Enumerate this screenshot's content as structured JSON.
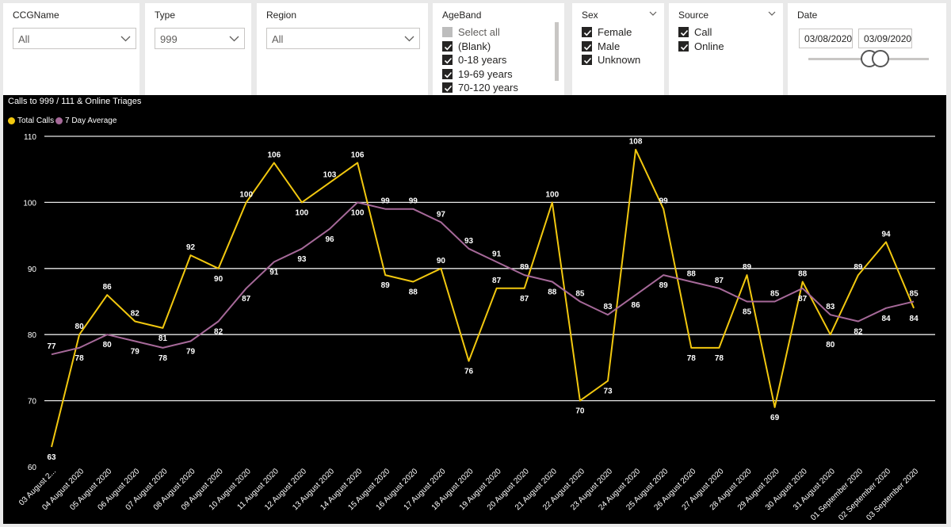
{
  "slicers": {
    "ccg": {
      "title": "CCGName",
      "value": "All"
    },
    "type": {
      "title": "Type",
      "value": "999"
    },
    "region": {
      "title": "Region",
      "value": "All"
    },
    "ageband": {
      "title": "AgeBand",
      "items": [
        {
          "label": "Select all",
          "state": "partial"
        },
        {
          "label": "(Blank)",
          "state": "checked"
        },
        {
          "label": "0-18 years",
          "state": "checked"
        },
        {
          "label": "19-69 years",
          "state": "checked"
        },
        {
          "label": "70-120 years",
          "state": "checked"
        }
      ]
    },
    "sex": {
      "title": "Sex",
      "items": [
        {
          "label": "Female",
          "state": "checked"
        },
        {
          "label": "Male",
          "state": "checked"
        },
        {
          "label": "Unknown",
          "state": "checked"
        }
      ]
    },
    "source": {
      "title": "Source",
      "items": [
        {
          "label": "Call",
          "state": "checked"
        },
        {
          "label": "Online",
          "state": "checked"
        }
      ]
    },
    "date": {
      "title": "Date",
      "start": "03/08/2020",
      "end": "03/09/2020"
    }
  },
  "chart_data": {
    "type": "line",
    "title": "Calls to 999 / 111 & Online Triages",
    "xlabel": "",
    "ylabel": "",
    "ylim": [
      60,
      110
    ],
    "yticks": [
      60,
      70,
      80,
      90,
      100,
      110
    ],
    "grid": true,
    "legend_position": "top-left",
    "categories": [
      "03 August 2...",
      "04 August 2020",
      "05 August 2020",
      "06 August 2020",
      "07 August 2020",
      "08 August 2020",
      "09 August 2020",
      "10 August 2020",
      "11 August 2020",
      "12 August 2020",
      "13 August 2020",
      "14 August 2020",
      "15 August 2020",
      "16 August 2020",
      "17 August 2020",
      "18 August 2020",
      "19 August 2020",
      "20 August 2020",
      "21 August 2020",
      "22 August 2020",
      "23 August 2020",
      "24 August 2020",
      "25 August 2020",
      "26 August 2020",
      "27 August 2020",
      "28 August 2020",
      "29 August 2020",
      "30 August 2020",
      "31 August 2020",
      "01 September 2020",
      "02 September 2020",
      "03 September 2020"
    ],
    "series": [
      {
        "name": "Total Calls",
        "color": "#f2c80f",
        "values": [
          63,
          80,
          86,
          82,
          81,
          92,
          90,
          100,
          106,
          100,
          103,
          106,
          89,
          88,
          90,
          76,
          87,
          87,
          100,
          70,
          73,
          108,
          99,
          78,
          78,
          89,
          69,
          88,
          80,
          89,
          94,
          84
        ]
      },
      {
        "name": "7 Day Average",
        "color": "#a66999",
        "values": [
          77,
          78,
          80,
          79,
          78,
          79,
          82,
          87,
          91,
          93,
          96,
          100,
          99,
          99,
          97,
          93,
          91,
          89,
          88,
          85,
          83,
          86,
          89,
          88,
          87,
          85,
          85,
          87,
          83,
          82,
          84,
          85
        ]
      }
    ]
  }
}
